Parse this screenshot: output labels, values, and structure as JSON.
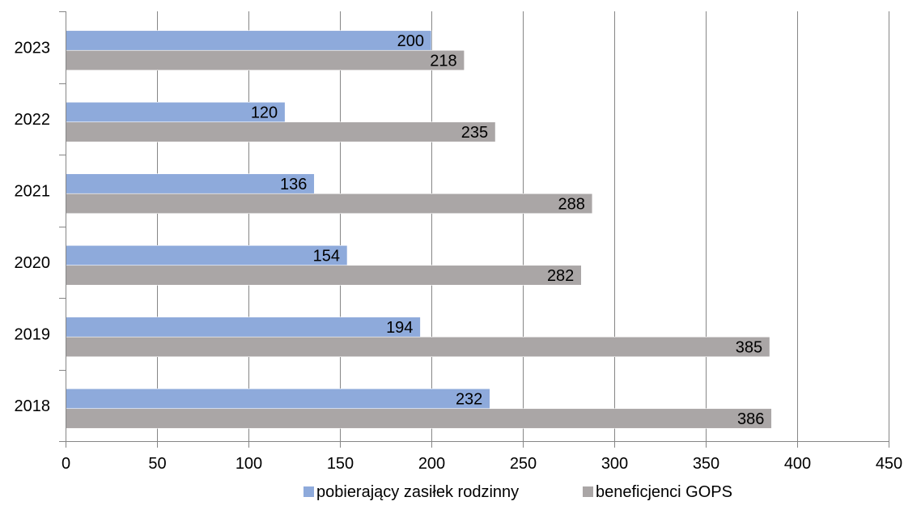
{
  "chart_data": {
    "type": "bar",
    "orientation": "horizontal",
    "title": "",
    "xlabel": "",
    "ylabel": "",
    "categories": [
      "2018",
      "2019",
      "2020",
      "2021",
      "2022",
      "2023"
    ],
    "series": [
      {
        "name": "pobierający zasiłek rodzinny",
        "values": [
          232,
          194,
          154,
          136,
          120,
          200
        ],
        "color": "#8eaadb"
      },
      {
        "name": "beneficjenci GOPS",
        "values": [
          386,
          385,
          282,
          288,
          235,
          218
        ],
        "color": "#aaa6a6"
      }
    ],
    "xlim": [
      0,
      450
    ],
    "x_ticks": [
      0,
      50,
      100,
      150,
      200,
      250,
      300,
      350,
      400,
      450
    ],
    "grid": "vertical major gridlines",
    "data_labels": "inside end",
    "legend_position": "bottom"
  }
}
